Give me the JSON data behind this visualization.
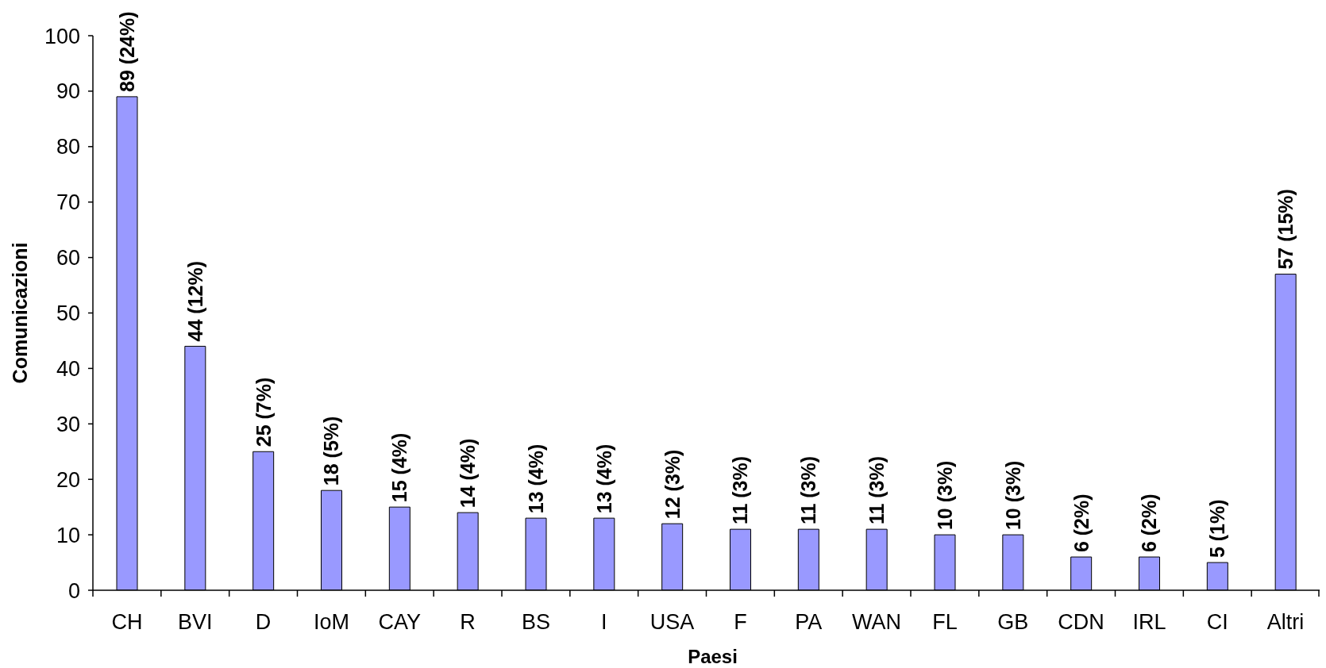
{
  "chart_data": {
    "type": "bar",
    "xlabel": "Paesi",
    "ylabel": "Comunicazioni",
    "categories": [
      "CH",
      "BVI",
      "D",
      "IoM",
      "CAY",
      "R",
      "BS",
      "I",
      "USA",
      "F",
      "PA",
      "WAN",
      "FL",
      "GB",
      "CDN",
      "IRL",
      "CI",
      "Altri"
    ],
    "values": [
      89,
      44,
      25,
      18,
      15,
      14,
      13,
      13,
      12,
      11,
      11,
      11,
      10,
      10,
      6,
      6,
      5,
      57
    ],
    "value_labels": [
      "89 (24%)",
      "44 (12%)",
      "25 (7%)",
      "18 (5%)",
      "15 (4%)",
      "14 (4%)",
      "13 (4%)",
      "13 (4%)",
      "12 (3%)",
      "11 (3%)",
      "11 (3%)",
      "11 (3%)",
      "10 (3%)",
      "10 (3%)",
      "6 (2%)",
      "6 (2%)",
      "5 (1%)",
      "57 (15%)"
    ],
    "color": "#9999ff",
    "ylim": [
      0,
      100
    ],
    "yticks": [
      0,
      10,
      20,
      30,
      40,
      50,
      60,
      70,
      80,
      90,
      100
    ],
    "grid": false
  }
}
